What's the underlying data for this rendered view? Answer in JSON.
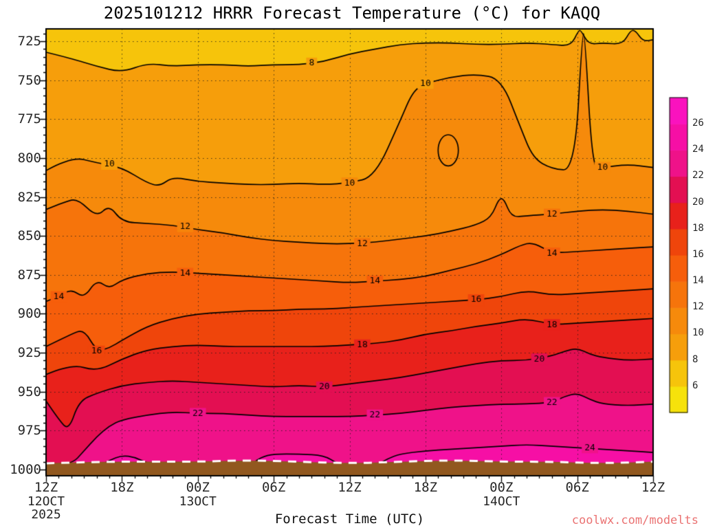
{
  "page": {
    "watermark": "coolwx.com/modelts"
  },
  "chart_data": {
    "type": "heatmap",
    "subtype": "filled-contour time-pressure cross-section",
    "title": "2025101212 HRRR Forecast Temperature (°C) for KAQQ",
    "xlabel": "Forecast Time (UTC)",
    "ylabel": "",
    "x_range_hours": [
      0,
      48
    ],
    "y_range_hpa": [
      717,
      1004
    ],
    "y_ticks": [
      725,
      750,
      775,
      800,
      825,
      850,
      875,
      900,
      925,
      950,
      975,
      1000
    ],
    "x_ticks": [
      {
        "hour": 0,
        "label": "12Z"
      },
      {
        "hour": 6,
        "label": "18Z"
      },
      {
        "hour": 12,
        "label": "00Z"
      },
      {
        "hour": 18,
        "label": "06Z"
      },
      {
        "hour": 24,
        "label": "12Z"
      },
      {
        "hour": 30,
        "label": "18Z"
      },
      {
        "hour": 36,
        "label": "00Z"
      },
      {
        "hour": 42,
        "label": "06Z"
      },
      {
        "hour": 48,
        "label": "12Z"
      }
    ],
    "x_date_labels": [
      {
        "hour": 0,
        "lines": [
          "12OCT",
          "2025"
        ]
      },
      {
        "hour": 12,
        "lines": [
          "13OCT"
        ]
      },
      {
        "hour": 36,
        "lines": [
          "14OCT"
        ]
      }
    ],
    "colorbar": {
      "levels": [
        6,
        8,
        10,
        12,
        14,
        16,
        18,
        20,
        22,
        24,
        26
      ],
      "colors": [
        "#F6E20B",
        "#F6C40B",
        "#F69E0B",
        "#F68A0B",
        "#F6740B",
        "#F65E0B",
        "#EF450B",
        "#E8211B",
        "#E30F52",
        "#EF1289",
        "#F60FA5",
        "#FA12BE"
      ]
    },
    "contour_levels": [
      8,
      10,
      12,
      14,
      16,
      18,
      20,
      22,
      24
    ],
    "contours": {
      "8": [
        [
          0,
          732
        ],
        [
          2,
          736
        ],
        [
          4,
          741
        ],
        [
          6,
          745
        ],
        [
          8,
          739
        ],
        [
          10,
          741
        ],
        [
          12,
          740
        ],
        [
          14,
          740
        ],
        [
          16,
          741
        ],
        [
          18,
          740
        ],
        [
          20,
          740
        ],
        [
          22,
          738
        ],
        [
          24,
          733
        ],
        [
          26,
          730
        ],
        [
          28,
          727
        ],
        [
          30,
          726
        ],
        [
          32,
          726
        ],
        [
          34,
          727
        ],
        [
          36,
          727
        ],
        [
          38,
          726
        ],
        [
          40,
          727
        ],
        [
          41.5,
          728
        ],
        [
          42.1,
          718
        ],
        [
          42.3,
          718
        ],
        [
          42.9,
          727
        ],
        [
          44,
          726
        ],
        [
          45.6,
          727
        ],
        [
          46.2,
          718
        ],
        [
          46.6,
          718
        ],
        [
          47.2,
          725
        ],
        [
          48,
          724
        ]
      ],
      "10": [
        [
          0,
          808
        ],
        [
          2,
          799
        ],
        [
          4,
          803
        ],
        [
          6,
          806
        ],
        [
          8,
          816
        ],
        [
          9,
          818
        ],
        [
          10,
          812
        ],
        [
          12,
          815
        ],
        [
          14,
          816
        ],
        [
          16,
          817
        ],
        [
          18,
          817
        ],
        [
          20,
          816
        ],
        [
          22,
          817
        ],
        [
          24,
          816
        ],
        [
          26,
          812
        ],
        [
          28,
          776
        ],
        [
          29,
          757
        ],
        [
          30,
          752
        ],
        [
          32,
          748
        ],
        [
          34,
          746
        ],
        [
          36,
          749
        ],
        [
          37.5,
          780
        ],
        [
          38.5,
          800
        ],
        [
          40,
          807
        ],
        [
          41.8,
          808
        ],
        [
          42.4,
          720
        ],
        [
          42.6,
          720
        ],
        [
          43.2,
          807
        ],
        [
          44,
          806
        ],
        [
          46,
          804
        ],
        [
          48,
          806
        ]
      ],
      "12": [
        [
          0,
          833
        ],
        [
          1.5,
          828
        ],
        [
          2.5,
          826
        ],
        [
          4,
          838
        ],
        [
          5,
          830
        ],
        [
          6,
          841
        ],
        [
          8,
          842
        ],
        [
          10,
          843
        ],
        [
          12,
          846
        ],
        [
          14,
          848
        ],
        [
          16,
          851
        ],
        [
          18,
          853
        ],
        [
          20,
          854
        ],
        [
          22,
          855
        ],
        [
          24,
          855
        ],
        [
          26,
          854
        ],
        [
          28,
          852
        ],
        [
          30,
          850
        ],
        [
          32,
          847
        ],
        [
          34,
          843
        ],
        [
          35.2,
          838
        ],
        [
          35.8,
          826
        ],
        [
          36.2,
          826
        ],
        [
          36.8,
          838
        ],
        [
          38,
          837
        ],
        [
          40,
          836
        ],
        [
          42,
          834
        ],
        [
          44,
          833
        ],
        [
          46,
          834
        ],
        [
          48,
          836
        ]
      ],
      "14": [
        [
          0,
          892
        ],
        [
          1,
          889
        ],
        [
          2,
          884
        ],
        [
          3,
          890
        ],
        [
          4,
          878
        ],
        [
          5,
          884
        ],
        [
          6,
          878
        ],
        [
          8,
          874
        ],
        [
          10,
          873
        ],
        [
          12,
          874
        ],
        [
          14,
          875
        ],
        [
          16,
          876
        ],
        [
          18,
          877
        ],
        [
          20,
          878
        ],
        [
          22,
          879
        ],
        [
          24,
          880
        ],
        [
          26,
          879
        ],
        [
          28,
          878
        ],
        [
          30,
          876
        ],
        [
          32,
          872
        ],
        [
          34,
          868
        ],
        [
          36,
          862
        ],
        [
          37.5,
          856
        ],
        [
          38.5,
          854
        ],
        [
          40,
          861
        ],
        [
          42,
          860
        ],
        [
          44,
          859
        ],
        [
          46,
          858
        ],
        [
          48,
          857
        ]
      ],
      "16": [
        [
          0,
          921
        ],
        [
          2,
          913
        ],
        [
          3,
          910
        ],
        [
          4,
          924
        ],
        [
          5,
          922
        ],
        [
          6,
          917
        ],
        [
          8,
          908
        ],
        [
          10,
          903
        ],
        [
          12,
          900
        ],
        [
          14,
          899
        ],
        [
          16,
          898
        ],
        [
          18,
          898
        ],
        [
          20,
          897
        ],
        [
          22,
          897
        ],
        [
          24,
          896
        ],
        [
          26,
          895
        ],
        [
          28,
          894
        ],
        [
          30,
          893
        ],
        [
          32,
          892
        ],
        [
          34,
          891
        ],
        [
          36,
          889
        ],
        [
          38,
          885
        ],
        [
          40,
          888
        ],
        [
          42,
          887
        ],
        [
          44,
          886
        ],
        [
          46,
          885
        ],
        [
          48,
          884
        ]
      ],
      "18": [
        [
          0,
          939
        ],
        [
          2,
          932
        ],
        [
          4,
          937
        ],
        [
          6,
          929
        ],
        [
          8,
          923
        ],
        [
          10,
          921
        ],
        [
          12,
          920
        ],
        [
          14,
          921
        ],
        [
          16,
          921
        ],
        [
          18,
          921
        ],
        [
          20,
          921
        ],
        [
          22,
          921
        ],
        [
          24,
          920
        ],
        [
          26,
          919
        ],
        [
          28,
          917
        ],
        [
          30,
          913
        ],
        [
          32,
          911
        ],
        [
          34,
          908
        ],
        [
          36,
          906
        ],
        [
          38,
          903
        ],
        [
          40,
          907
        ],
        [
          42,
          906
        ],
        [
          44,
          905
        ],
        [
          46,
          904
        ],
        [
          48,
          903
        ]
      ],
      "20": [
        [
          0,
          956
        ],
        [
          1,
          968
        ],
        [
          1.8,
          975
        ],
        [
          2.6,
          956
        ],
        [
          4,
          951
        ],
        [
          6,
          946
        ],
        [
          8,
          944
        ],
        [
          10,
          943
        ],
        [
          12,
          944
        ],
        [
          14,
          945
        ],
        [
          16,
          946
        ],
        [
          18,
          947
        ],
        [
          20,
          946
        ],
        [
          22,
          947
        ],
        [
          24,
          945
        ],
        [
          26,
          943
        ],
        [
          28,
          941
        ],
        [
          30,
          938
        ],
        [
          32,
          935
        ],
        [
          34,
          932
        ],
        [
          36,
          930
        ],
        [
          38,
          930
        ],
        [
          40,
          927
        ],
        [
          41,
          924
        ],
        [
          42,
          922
        ],
        [
          43,
          926
        ],
        [
          44,
          928
        ],
        [
          46,
          930
        ],
        [
          48,
          929
        ]
      ],
      "22": [
        [
          0,
          999
        ],
        [
          2,
          997
        ],
        [
          3,
          988
        ],
        [
          4,
          979
        ],
        [
          5,
          972
        ],
        [
          6,
          968
        ],
        [
          8,
          965
        ],
        [
          10,
          963
        ],
        [
          12,
          964
        ],
        [
          14,
          964
        ],
        [
          16,
          965
        ],
        [
          18,
          966
        ],
        [
          20,
          966
        ],
        [
          22,
          966
        ],
        [
          24,
          966
        ],
        [
          26,
          965
        ],
        [
          28,
          964
        ],
        [
          30,
          962
        ],
        [
          32,
          960
        ],
        [
          34,
          959
        ],
        [
          36,
          958
        ],
        [
          38,
          958
        ],
        [
          40,
          957
        ],
        [
          41,
          953
        ],
        [
          42,
          951
        ],
        [
          43,
          955
        ],
        [
          44,
          958
        ],
        [
          46,
          959
        ],
        [
          48,
          958
        ]
      ],
      "24": [
        [
          0,
          1002
        ],
        [
          2,
          1001
        ],
        [
          4,
          999
        ],
        [
          5,
          994
        ],
        [
          6,
          991
        ],
        [
          7,
          992
        ],
        [
          8,
          996
        ],
        [
          10,
          1000
        ],
        [
          12,
          1001
        ],
        [
          14,
          1000
        ],
        [
          16,
          998
        ],
        [
          17,
          992
        ],
        [
          18,
          990
        ],
        [
          20,
          990
        ],
        [
          22,
          991
        ],
        [
          23,
          996
        ],
        [
          24,
          1000
        ],
        [
          26,
          998
        ],
        [
          27,
          993
        ],
        [
          28,
          990
        ],
        [
          30,
          988
        ],
        [
          32,
          987
        ],
        [
          34,
          986
        ],
        [
          36,
          985
        ],
        [
          38,
          984
        ],
        [
          40,
          985
        ],
        [
          42,
          986
        ],
        [
          44,
          987
        ],
        [
          46,
          988
        ],
        [
          48,
          989
        ]
      ]
    },
    "contour_labels": [
      {
        "text": "8",
        "hour": 21,
        "pressure": 739
      },
      {
        "text": "10",
        "hour": 5,
        "pressure": 804
      },
      {
        "text": "10",
        "hour": 24,
        "pressure": 816
      },
      {
        "text": "10",
        "hour": 30,
        "pressure": 752
      },
      {
        "text": "10",
        "hour": 44,
        "pressure": 806
      },
      {
        "text": "12",
        "hour": 11,
        "pressure": 844
      },
      {
        "text": "12",
        "hour": 25,
        "pressure": 855
      },
      {
        "text": "12",
        "hour": 40,
        "pressure": 836
      },
      {
        "text": "14",
        "hour": 1,
        "pressure": 889
      },
      {
        "text": "14",
        "hour": 11,
        "pressure": 874
      },
      {
        "text": "14",
        "hour": 26,
        "pressure": 879
      },
      {
        "text": "14",
        "hour": 40,
        "pressure": 861
      },
      {
        "text": "16",
        "hour": 4,
        "pressure": 924
      },
      {
        "text": "16",
        "hour": 34,
        "pressure": 891
      },
      {
        "text": "18",
        "hour": 25,
        "pressure": 920
      },
      {
        "text": "18",
        "hour": 40,
        "pressure": 907
      },
      {
        "text": "20",
        "hour": 22,
        "pressure": 947
      },
      {
        "text": "20",
        "hour": 39,
        "pressure": 929
      },
      {
        "text": "22",
        "hour": 12,
        "pressure": 964
      },
      {
        "text": "22",
        "hour": 26,
        "pressure": 965
      },
      {
        "text": "22",
        "hour": 40,
        "pressure": 957
      },
      {
        "text": "24",
        "hour": 43,
        "pressure": 986
      }
    ],
    "closed_contours": [
      {
        "level": 10,
        "hour": 31.8,
        "pressure": 795,
        "rx_hours": 0.8,
        "ry_hpa": 10
      }
    ],
    "ground": {
      "color": "#91581F",
      "surface_color": "#FFFFFF",
      "profile": [
        [
          0,
          996
        ],
        [
          4,
          995
        ],
        [
          8,
          995
        ],
        [
          12,
          995
        ],
        [
          16,
          994
        ],
        [
          20,
          995
        ],
        [
          24,
          996
        ],
        [
          28,
          995
        ],
        [
          32,
          994
        ],
        [
          36,
          995
        ],
        [
          40,
          995
        ],
        [
          44,
          996
        ],
        [
          48,
          995
        ]
      ]
    }
  }
}
